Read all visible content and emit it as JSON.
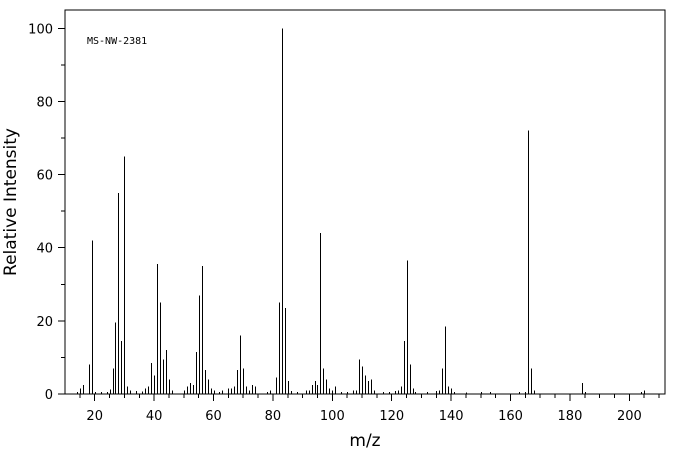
{
  "chart_data": {
    "type": "bar",
    "annotation": "MS-NW-2381",
    "xlabel": "m/z",
    "ylabel": "Relative Intensity",
    "xlim": [
      10,
      212
    ],
    "ylim": [
      0,
      105
    ],
    "x_ticks": [
      20,
      40,
      60,
      80,
      100,
      120,
      140,
      160,
      180,
      200
    ],
    "y_ticks": [
      0,
      20,
      40,
      60,
      80,
      100
    ],
    "grid": false,
    "peaks": [
      [
        14,
        0.6
      ],
      [
        15,
        1.5
      ],
      [
        16,
        2.5
      ],
      [
        18,
        8.0
      ],
      [
        19,
        42.0
      ],
      [
        20,
        0.5
      ],
      [
        22,
        0.5
      ],
      [
        24,
        0.6
      ],
      [
        25,
        1.2
      ],
      [
        26,
        7.0
      ],
      [
        27,
        19.5
      ],
      [
        28,
        55.0
      ],
      [
        29,
        14.5
      ],
      [
        30,
        65.0
      ],
      [
        31,
        2.0
      ],
      [
        32,
        1.0
      ],
      [
        34,
        0.8
      ],
      [
        36,
        0.7
      ],
      [
        37,
        1.5
      ],
      [
        38,
        2.0
      ],
      [
        39,
        8.5
      ],
      [
        40,
        5.0
      ],
      [
        41,
        35.5
      ],
      [
        42,
        25.0
      ],
      [
        43,
        9.5
      ],
      [
        44,
        12.0
      ],
      [
        45,
        4.0
      ],
      [
        46,
        1.0
      ],
      [
        50,
        1.0
      ],
      [
        51,
        2.0
      ],
      [
        52,
        3.0
      ],
      [
        53,
        2.5
      ],
      [
        54,
        11.5
      ],
      [
        55,
        27.0
      ],
      [
        56,
        35.0
      ],
      [
        57,
        6.5
      ],
      [
        58,
        4.0
      ],
      [
        59,
        1.5
      ],
      [
        60,
        1.0
      ],
      [
        62,
        0.6
      ],
      [
        63,
        1.0
      ],
      [
        65,
        1.5
      ],
      [
        66,
        1.5
      ],
      [
        67,
        2.0
      ],
      [
        68,
        6.5
      ],
      [
        69,
        16.0
      ],
      [
        70,
        7.0
      ],
      [
        71,
        2.0
      ],
      [
        72,
        1.0
      ],
      [
        73,
        2.5
      ],
      [
        74,
        2.0
      ],
      [
        78,
        0.5
      ],
      [
        79,
        1.0
      ],
      [
        81,
        4.5
      ],
      [
        82,
        25.0
      ],
      [
        83,
        100.0
      ],
      [
        84,
        23.5
      ],
      [
        85,
        3.5
      ],
      [
        86,
        0.8
      ],
      [
        88,
        0.5
      ],
      [
        91,
        1.0
      ],
      [
        92,
        1.0
      ],
      [
        93,
        2.5
      ],
      [
        94,
        3.5
      ],
      [
        95,
        2.5
      ],
      [
        96,
        44.0
      ],
      [
        97,
        7.0
      ],
      [
        98,
        4.0
      ],
      [
        99,
        1.5
      ],
      [
        100,
        1.0
      ],
      [
        101,
        2.0
      ],
      [
        103,
        0.5
      ],
      [
        105,
        0.5
      ],
      [
        107,
        1.0
      ],
      [
        108,
        1.0
      ],
      [
        109,
        9.5
      ],
      [
        110,
        7.5
      ],
      [
        111,
        5.0
      ],
      [
        112,
        3.5
      ],
      [
        113,
        4.0
      ],
      [
        114,
        1.0
      ],
      [
        117,
        0.5
      ],
      [
        119,
        0.5
      ],
      [
        121,
        0.8
      ],
      [
        122,
        1.0
      ],
      [
        123,
        2.0
      ],
      [
        124,
        14.5
      ],
      [
        125,
        36.5
      ],
      [
        126,
        8.0
      ],
      [
        127,
        1.5
      ],
      [
        128,
        0.5
      ],
      [
        132,
        0.5
      ],
      [
        135,
        0.8
      ],
      [
        136,
        1.0
      ],
      [
        137,
        7.0
      ],
      [
        138,
        18.5
      ],
      [
        139,
        2.0
      ],
      [
        140,
        1.5
      ],
      [
        141,
        0.5
      ],
      [
        145,
        0.4
      ],
      [
        150,
        0.5
      ],
      [
        153,
        0.5
      ],
      [
        163,
        0.5
      ],
      [
        165,
        0.5
      ],
      [
        166,
        72.0
      ],
      [
        167,
        7.0
      ],
      [
        168,
        1.0
      ],
      [
        184,
        3.0
      ],
      [
        185,
        0.5
      ],
      [
        204,
        0.5
      ],
      [
        205,
        1.0
      ]
    ]
  }
}
